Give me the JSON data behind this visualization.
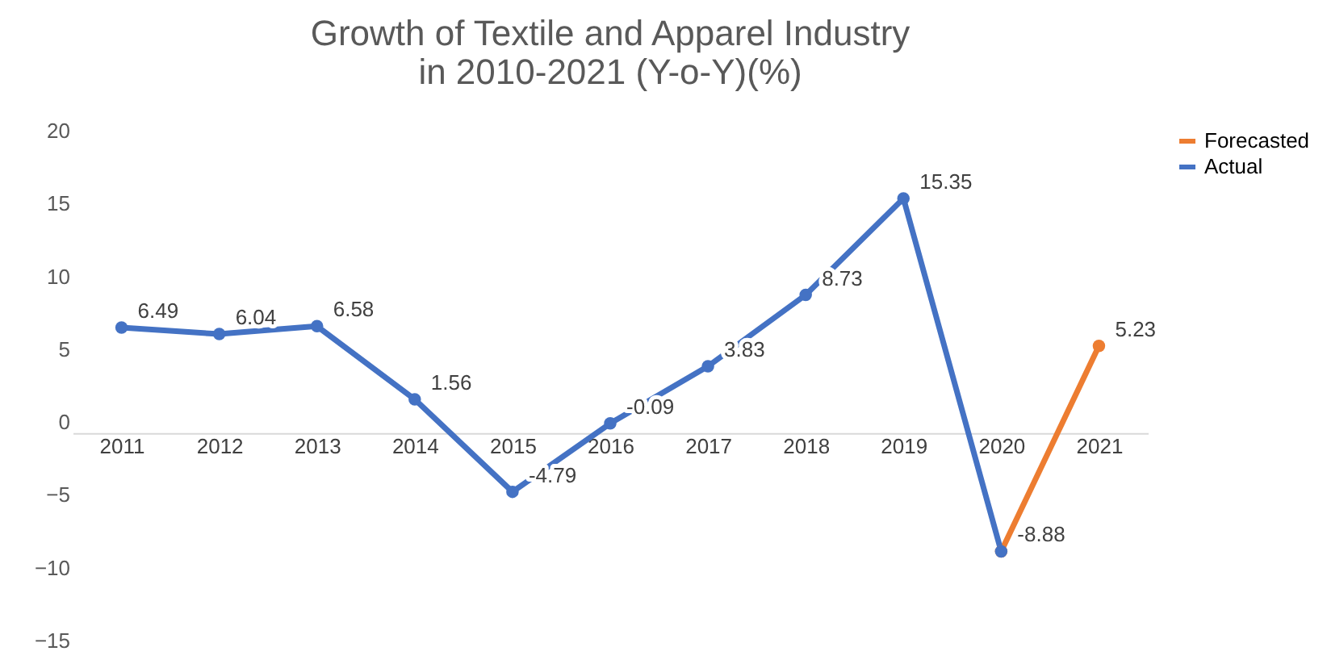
{
  "chart_data": {
    "type": "line",
    "title": "Growth of Textile and Apparel Industry\nin 2010-2021 (Y-o-Y)(%)",
    "categories": [
      "2011",
      "2012",
      "2013",
      "2014",
      "2015",
      "2016",
      "2017",
      "2018",
      "2019",
      "2020",
      "2021"
    ],
    "series": [
      {
        "name": "Forecasted",
        "color": "#ed7d31",
        "values": [
          null,
          null,
          null,
          null,
          null,
          null,
          null,
          null,
          null,
          -8.88,
          5.23
        ],
        "value_labels": [
          null,
          null,
          null,
          null,
          null,
          null,
          null,
          null,
          null,
          null,
          "5.23"
        ]
      },
      {
        "name": "Actual",
        "color": "#4472c4",
        "values": [
          6.49,
          6.04,
          6.58,
          1.56,
          -4.79,
          -0.09,
          3.83,
          8.73,
          15.35,
          -8.88,
          null
        ],
        "value_labels": [
          "6.49",
          "6.04",
          "6.58",
          "1.56",
          "-4.79",
          "-0.09",
          "3.83",
          "8.73",
          "15.35",
          "-8.88",
          null
        ]
      }
    ],
    "ylim": [
      -15,
      20
    ],
    "yticks": [
      -15,
      -10,
      -5,
      0,
      5,
      10,
      15,
      20
    ],
    "grid": false,
    "legend": "right",
    "marker": "circle",
    "line_style": "solid"
  }
}
